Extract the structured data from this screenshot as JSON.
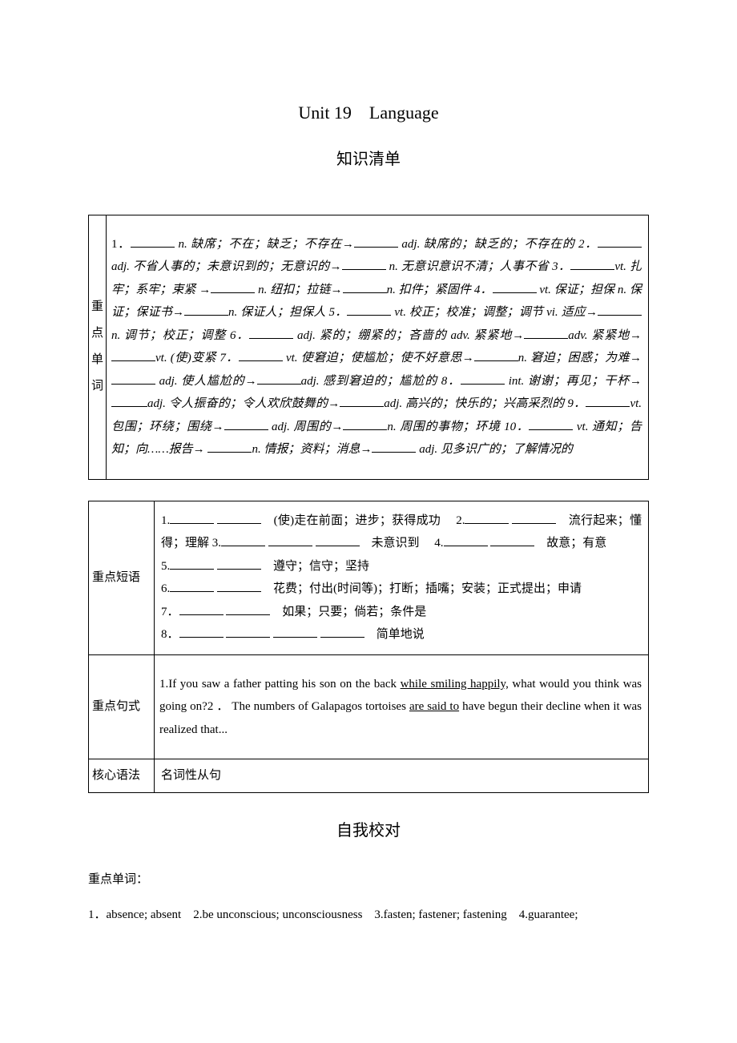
{
  "titles": {
    "main": "Unit 19　Language",
    "sub": "知识清单",
    "section": "自我校对"
  },
  "table1": {
    "label_chars": [
      "重",
      "点",
      "单",
      "词"
    ],
    "parts": {
      "p1a": "1．",
      "p1b": " n. 缺席；不在；缺乏；不存在→",
      "p1c": " adj. 缺席的；缺乏的；不存在的 2．",
      "p1d": " adj. 不省人事的；未意识到的；无意识的→",
      "p1e": " n. 无意识意识不清；人事不省 3．",
      "p1f": "vt. 扎牢；系牢；束紧 →",
      "p1g": " n. 纽扣；拉链→",
      "p1h": "n. 扣件；紧固件 4．",
      "p1i": " vt. 保证；担保 n. 保证；保证书→",
      "p1j": "n. 保证人；担保人 5．",
      "p1k": " vt. 校正；校准；调整；调节 vi. 适应→",
      "p1l": "n. 调节；校正；调整 6．",
      "p1m": " adj. 紧的；绷紧的；吝啬的 adv. 紧紧地→",
      "p1n": "adv. 紧紧地→",
      "p1o": "vt. (使)变紧 7．",
      "p1p": " vt. 使窘迫；使尴尬；使不好意思→",
      "p1q": "n. 窘迫；困惑；为难→",
      "p1r": " adj. 使人尴尬的→",
      "p1s": "adj. 感到窘迫的；尴尬的 8．",
      "p1t": " int. 谢谢；再见；干杯→",
      "p1u": "adj. 令人振奋的；令人欢欣鼓舞的→",
      "p1v": "adj. 高兴的；快乐的；兴高采烈的 9．",
      "p1w": "vt. 包围；环绕；围绕→",
      "p1x": " adj. 周围的→",
      "p1y": "n. 周围的事物；环境 10．",
      "p1z": " vt. 通知；告知；向……报告→ ",
      "p1aa": "n. 情报；资料；消息→",
      "p1ab": " adj. 见多识广的；了解情况的"
    }
  },
  "table2": {
    "row1": {
      "label": "重点短语",
      "lines": {
        "l1a": "1.",
        "l1b": "　(使)走在前面；进步；获得成功　 2.",
        "l2a": "　流行起来；懂得；理解 3.",
        "l2b": "　未意识到　 4.",
        "l2c": "　故意；有意",
        "l3a": "5.",
        "l3b": "　遵守；信守；坚持",
        "l4a": "6.",
        "l4b": "　花费；付出(时间等)；打断；插嘴；安装；正式提出；申请",
        "l5a": "7．",
        "l5b": "　如果；只要；倘若；条件是",
        "l6a": "8．",
        "l6b": "　简单地说"
      }
    },
    "row2": {
      "label": "重点句式",
      "text_a": "1.If you saw a father patting his son on the back ",
      "text_u1": "while smiling happily,",
      "text_b": " what would you think was going on?2 ． The numbers of Galapagos tortoises ",
      "text_u2": "are said to",
      "text_c": " have begun their decline when it was realized that..."
    },
    "row3": {
      "label": "核心语法",
      "text": "名词性从句"
    }
  },
  "answers": {
    "label": "重点单词：",
    "line": "1．absence; absent　2.be unconscious; unconsciousness　3.fasten; fastener; fastening　4.guarantee;"
  }
}
